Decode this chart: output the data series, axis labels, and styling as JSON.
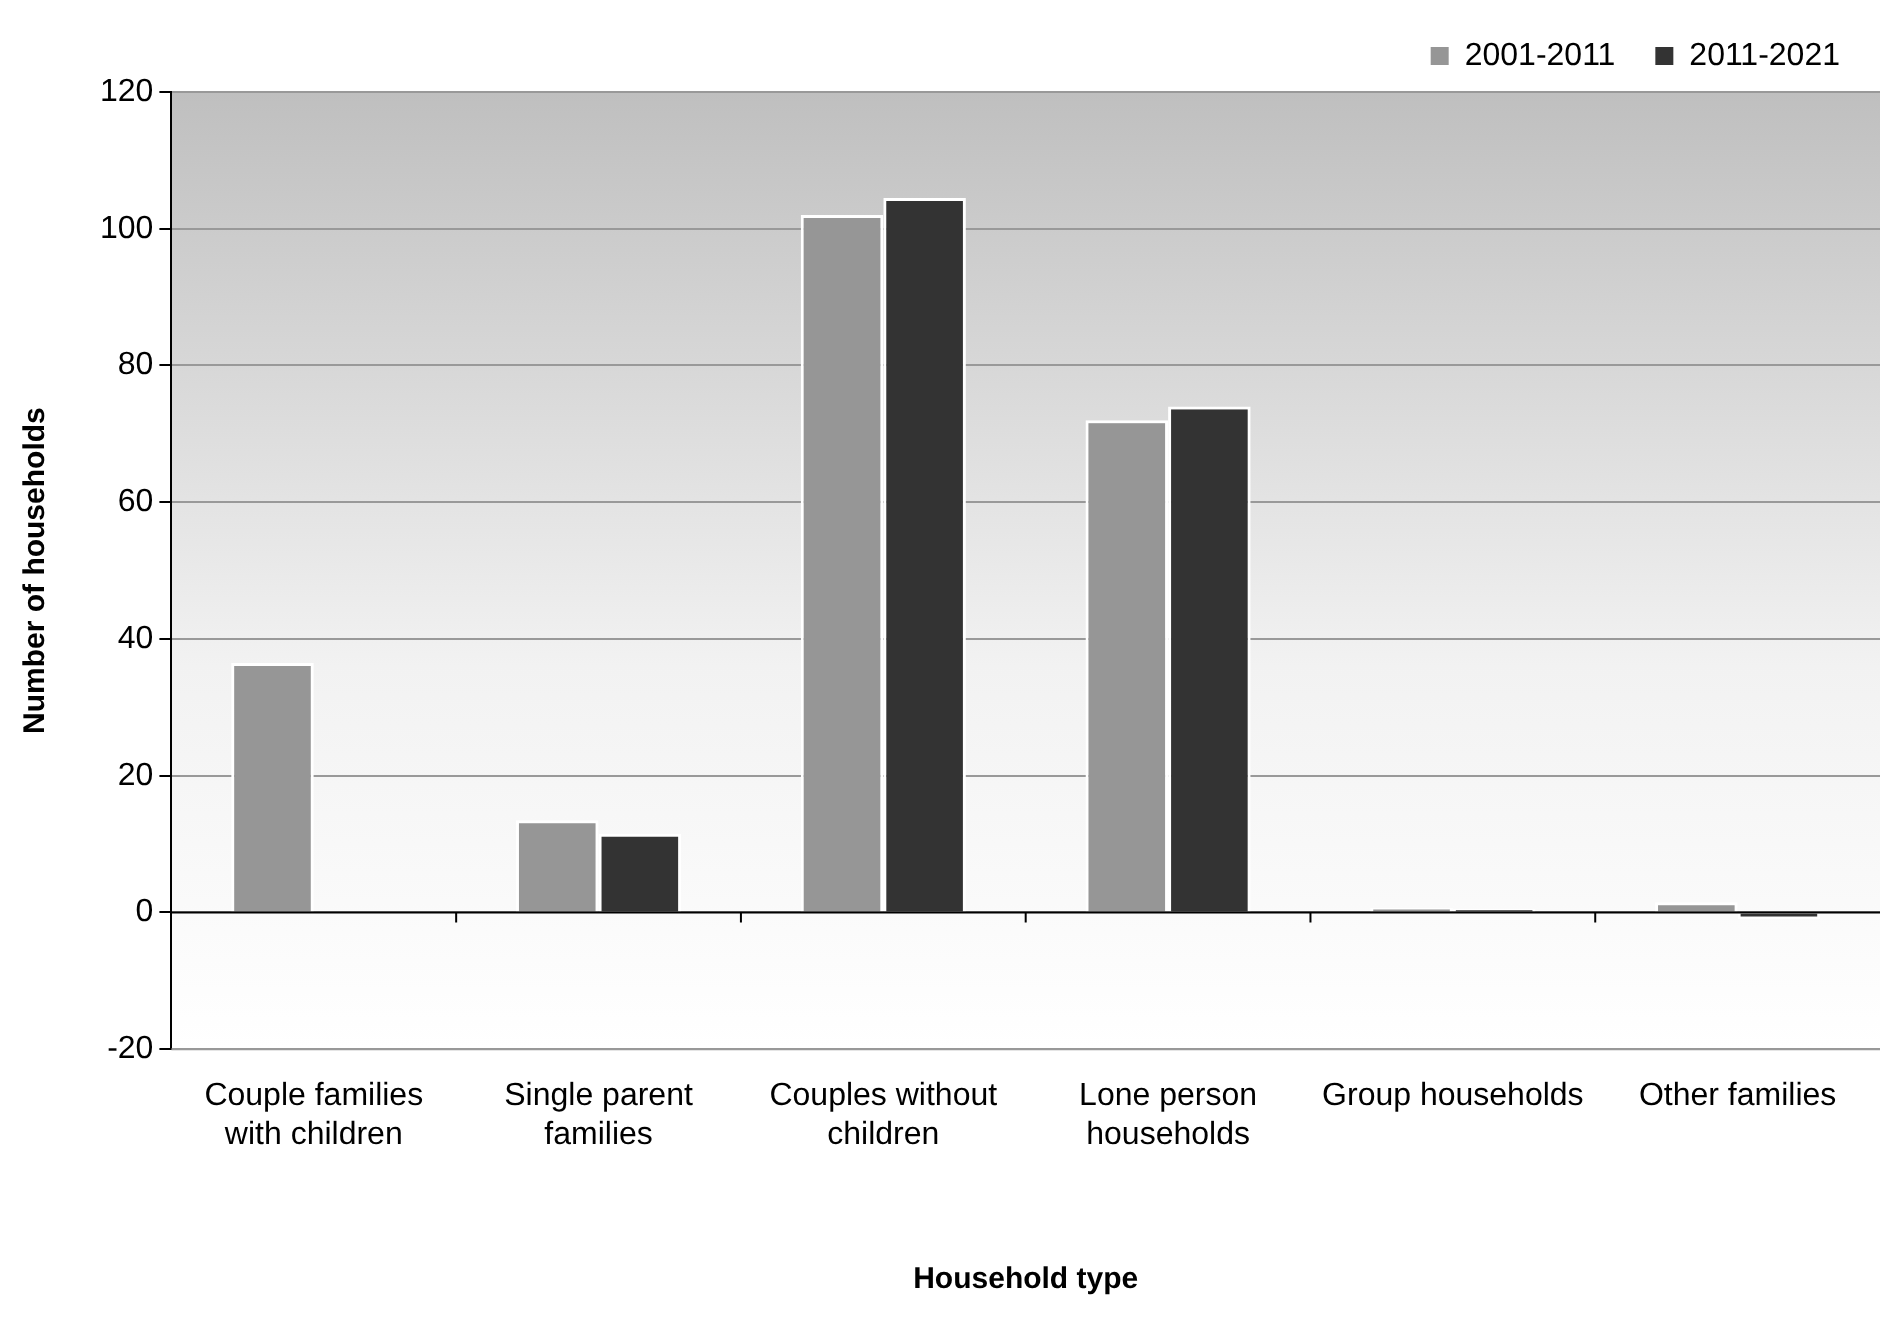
{
  "chart_data": {
    "type": "bar",
    "xlabel": "Household type",
    "ylabel": "Number of households",
    "categories": [
      "Couple families with children",
      "Single parent families",
      "Couples without children",
      "Lone person households",
      "Group households",
      "Other families"
    ],
    "series": [
      {
        "name": "2001-2011",
        "color": "#969696",
        "values": [
          36.5,
          13.5,
          102,
          72,
          0.7,
          1.5
        ]
      },
      {
        "name": "2011-2021",
        "color": "#333333",
        "values": [
          0,
          11.5,
          104.5,
          74,
          0.5,
          -1
        ]
      }
    ],
    "ylim": [
      -20,
      120
    ],
    "yticks": [
      -20,
      0,
      20,
      40,
      60,
      80,
      100,
      120
    ],
    "grid": "y",
    "legend": "top right"
  }
}
